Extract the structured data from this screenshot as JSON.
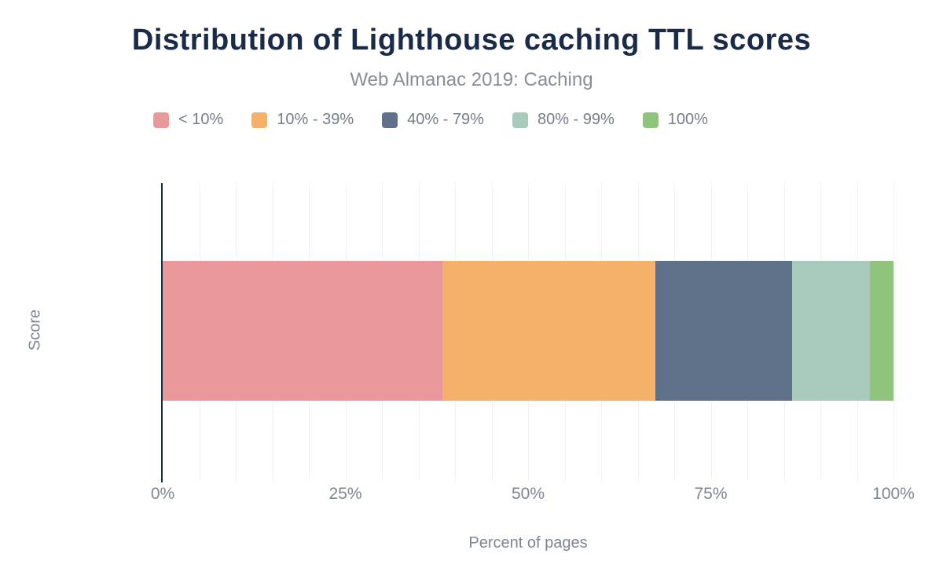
{
  "title": "Distribution of Lighthouse caching TTL scores",
  "subtitle": "Web Almanac 2019: Caching",
  "colors": {
    "title": "#1a2b49",
    "subtitle_text": "#878e98",
    "axis_text": "#7d8692",
    "y_axis_line": "#142c47",
    "gridline": "#f1f2f3",
    "background": "#ffffff"
  },
  "chart_data": {
    "type": "bar",
    "stacked": true,
    "orientation": "horizontal",
    "title": "Distribution of Lighthouse caching TTL scores",
    "subtitle": "Web Almanac 2019: Caching",
    "categories": [
      "Score"
    ],
    "series": [
      {
        "name": "< 10%",
        "color": "#ea9899",
        "values": [
          38.3
        ]
      },
      {
        "name": "10% - 39%",
        "color": "#f5b06a",
        "values": [
          29.1
        ]
      },
      {
        "name": "40% - 79%",
        "color": "#5f7089",
        "values": [
          18.7
        ]
      },
      {
        "name": "80% - 99%",
        "color": "#a8cabb",
        "values": [
          10.7
        ]
      },
      {
        "name": "100%",
        "color": "#90c47d",
        "values": [
          3.2
        ]
      }
    ],
    "xlabel": "Percent of pages",
    "ylabel": "Score",
    "xlim": [
      0,
      100
    ],
    "x_ticks": [
      {
        "value": 0,
        "label": "0%"
      },
      {
        "value": 25,
        "label": "25%"
      },
      {
        "value": 50,
        "label": "50%"
      },
      {
        "value": 75,
        "label": "75%"
      },
      {
        "value": 100,
        "label": "100%"
      }
    ],
    "grid": {
      "vertical_minor_step_percent": 5,
      "horizontal": false
    },
    "legend_position": "top"
  }
}
